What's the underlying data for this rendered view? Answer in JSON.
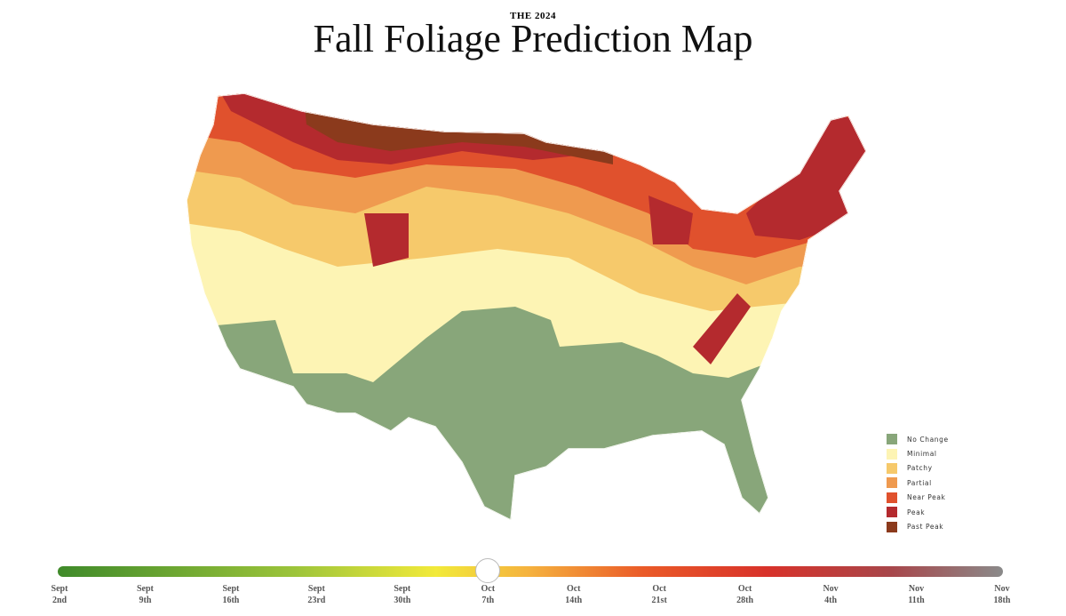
{
  "header": {
    "pretitle": "THE 2024",
    "title": "Fall Foliage Prediction Map"
  },
  "legend": [
    {
      "label": "No Change",
      "color": "#88a67a"
    },
    {
      "label": "Minimal",
      "color": "#fdf4b4"
    },
    {
      "label": "Patchy",
      "color": "#f6c96b"
    },
    {
      "label": "Partial",
      "color": "#ef9a4f"
    },
    {
      "label": "Near Peak",
      "color": "#e0512d"
    },
    {
      "label": "Peak",
      "color": "#b42a2e"
    },
    {
      "label": "Past Peak",
      "color": "#8b3a1c"
    }
  ],
  "timeline": {
    "selected": 5,
    "labels": [
      {
        "month": "Sept",
        "day": "2nd"
      },
      {
        "month": "Sept",
        "day": "9th"
      },
      {
        "month": "Sept",
        "day": "16th"
      },
      {
        "month": "Sept",
        "day": "23rd"
      },
      {
        "month": "Sept",
        "day": "30th"
      },
      {
        "month": "Oct",
        "day": "7th"
      },
      {
        "month": "Oct",
        "day": "14th"
      },
      {
        "month": "Oct",
        "day": "21st"
      },
      {
        "month": "Oct",
        "day": "28th"
      },
      {
        "month": "Nov",
        "day": "4th"
      },
      {
        "month": "Nov",
        "day": "11th"
      },
      {
        "month": "Nov",
        "day": "18th"
      }
    ]
  }
}
